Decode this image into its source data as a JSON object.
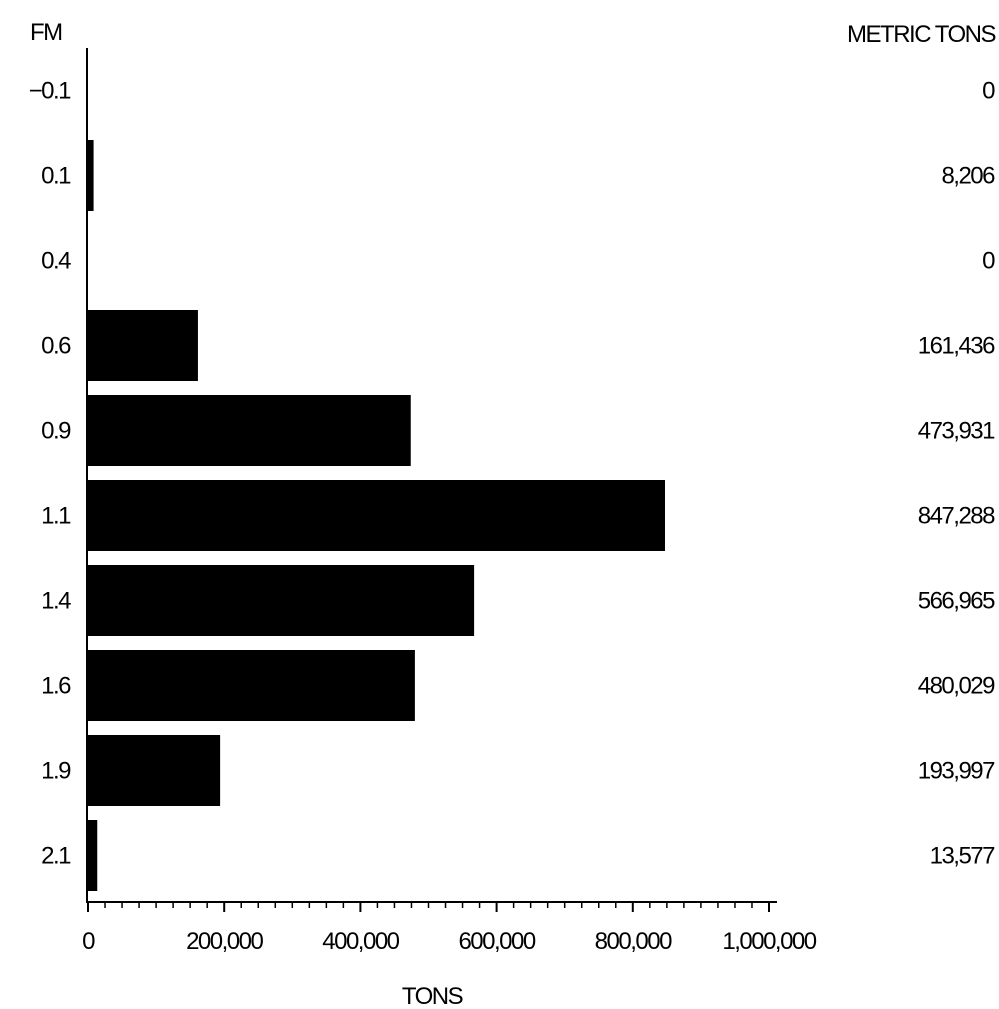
{
  "chart_data": {
    "type": "bar",
    "orientation": "horizontal",
    "category_header": "FM",
    "value_header": "METRIC TONS",
    "xlabel": "TONS",
    "xlim": [
      0,
      1000000
    ],
    "x_ticks": [
      0,
      200000,
      400000,
      600000,
      800000,
      1000000
    ],
    "x_tick_labels": [
      "0",
      "200,000",
      "400,000",
      "600,000",
      "800,000",
      "1,000,000"
    ],
    "minor_tick_step": 25000,
    "grid": false,
    "categories": [
      "−0.1",
      "0.1",
      "0.4",
      "0.6",
      "0.9",
      "1.1",
      "1.4",
      "1.6",
      "1.9",
      "2.1"
    ],
    "values": [
      0,
      8206,
      0,
      161436,
      473931,
      847288,
      566965,
      480029,
      193997,
      13577
    ],
    "value_labels": [
      "0",
      "8,206",
      "0",
      "161,436",
      "473,931",
      "847,288",
      "566,965",
      "480,029",
      "193,997",
      "13,577"
    ],
    "bar_color": "#000000"
  }
}
